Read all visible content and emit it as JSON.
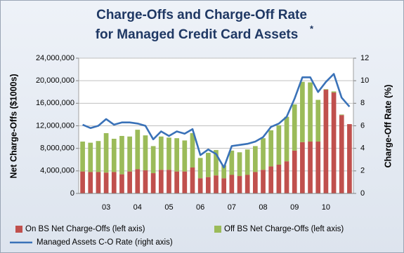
{
  "chart_data": {
    "type": "bar",
    "stacked": true,
    "title": [
      "Charge-Offs and Charge-Off Rate",
      "for Managed Credit Card Assets"
    ],
    "title_note": "*",
    "y_label": "Net Charge-Offs ($1000s)",
    "y2_label": "Charge-Off Rate (%)",
    "categories": [
      null,
      null,
      null,
      "03",
      null,
      null,
      null,
      "04",
      null,
      null,
      null,
      "05",
      null,
      null,
      null,
      "06",
      null,
      null,
      null,
      "07",
      null,
      null,
      null,
      "08",
      null,
      null,
      null,
      "09",
      null,
      null,
      null,
      "10",
      null,
      null,
      null
    ],
    "series": [
      {
        "name": "On BS Net Charge-Offs (left axis)",
        "type": "bar",
        "color": "#c0504d",
        "values": [
          3900000,
          3800000,
          3800000,
          3700000,
          3800000,
          3400000,
          3900000,
          4300000,
          4100000,
          3600000,
          4200000,
          4200000,
          3900000,
          3900000,
          4600000,
          2700000,
          2900000,
          3200000,
          2700000,
          3300000,
          3100000,
          3300000,
          3800000,
          4200000,
          4800000,
          5100000,
          5700000,
          7600000,
          9100000,
          9200000,
          9200000,
          18400000,
          17900000,
          13900000,
          12300000
        ]
      },
      {
        "name": "Off BS Net Charge-Offs (left axis)",
        "type": "bar",
        "color": "#9bbb59",
        "values": [
          5300000,
          5200000,
          5500000,
          7000000,
          5900000,
          6800000,
          6200000,
          7000000,
          6200000,
          4800000,
          5900000,
          5700000,
          5900000,
          5500000,
          6100000,
          3600000,
          4300000,
          4500000,
          2300000,
          4300000,
          4200000,
          4500000,
          4600000,
          5600000,
          6400000,
          7000000,
          7900000,
          8200000,
          10700000,
          10500000,
          7400000,
          100000,
          200000,
          100000,
          0
        ]
      },
      {
        "name": "Managed Assets C-O Rate (right axis)",
        "type": "line",
        "axis": "y2",
        "color": "#3a72b8",
        "values": [
          6.1,
          5.8,
          6.0,
          6.6,
          6.1,
          6.3,
          6.3,
          6.2,
          6.0,
          4.8,
          5.5,
          5.1,
          5.5,
          5.3,
          5.7,
          3.4,
          3.9,
          3.5,
          2.3,
          4.2,
          4.3,
          4.4,
          4.6,
          5.0,
          5.9,
          6.2,
          6.8,
          8.4,
          10.3,
          10.3,
          9.0,
          9.9,
          10.6,
          8.5,
          7.7
        ]
      }
    ],
    "ylim": [
      0,
      24000000
    ],
    "yticks": [
      0,
      {
        "value": 4000000,
        "label": "4,000,000"
      },
      {
        "value": 8000000,
        "label": "8,000,000"
      },
      {
        "value": 12000000,
        "label": "12,000,000"
      },
      {
        "value": 16000000,
        "label": "16,000,000"
      },
      {
        "value": 20000000,
        "label": "20,000,000"
      },
      {
        "value": 24000000,
        "label": "24,000,000"
      }
    ],
    "y2lim": [
      0,
      12
    ],
    "y2ticks": [
      0,
      2,
      4,
      6,
      8,
      10,
      12
    ],
    "grid": true
  }
}
